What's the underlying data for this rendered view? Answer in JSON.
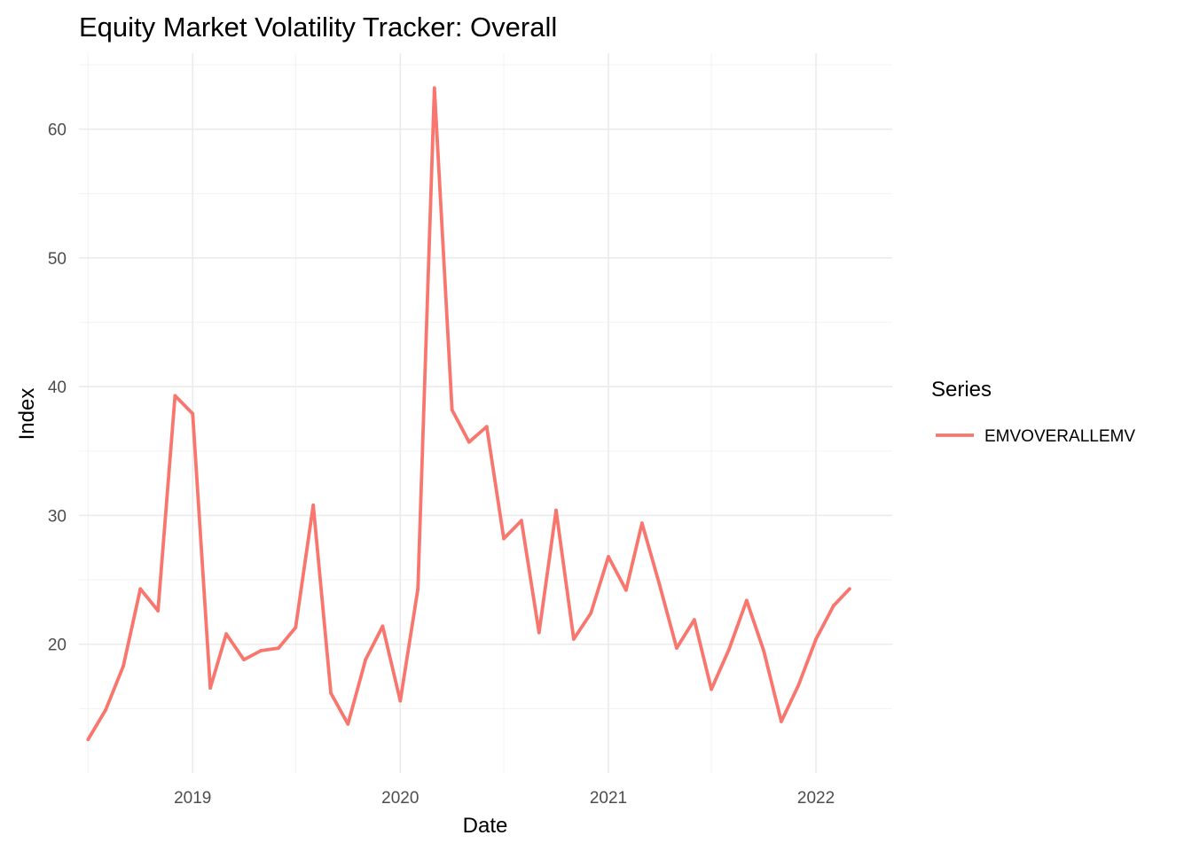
{
  "chart_data": {
    "type": "line",
    "title": "Equity Market Volatility Tracker: Overall",
    "xlabel": "Date",
    "ylabel": "Index",
    "x_ticks": [
      "2019",
      "2020",
      "2021",
      "2022"
    ],
    "y_ticks": [
      20,
      30,
      40,
      50,
      60
    ],
    "xlim": [
      "2018-06-15",
      "2022-05-15"
    ],
    "ylim": [
      10.0,
      65.9
    ],
    "grid": true,
    "legend": {
      "title": "Series",
      "position": "right"
    },
    "series": [
      {
        "name": "EMVOVERALLEMV",
        "color": "#F8766D",
        "x": [
          "2018-07-01",
          "2018-08-01",
          "2018-09-01",
          "2018-10-01",
          "2018-11-01",
          "2018-12-01",
          "2019-01-01",
          "2019-02-01",
          "2019-03-01",
          "2019-04-01",
          "2019-05-01",
          "2019-06-01",
          "2019-07-01",
          "2019-08-01",
          "2019-09-01",
          "2019-10-01",
          "2019-11-01",
          "2019-12-01",
          "2020-01-01",
          "2020-02-01",
          "2020-03-01",
          "2020-04-01",
          "2020-05-01",
          "2020-06-01",
          "2020-07-01",
          "2020-08-01",
          "2020-09-01",
          "2020-10-01",
          "2020-11-01",
          "2020-12-01",
          "2021-01-01",
          "2021-02-01",
          "2021-03-01",
          "2021-04-01",
          "2021-05-01",
          "2021-06-01",
          "2021-07-01",
          "2021-08-01",
          "2021-09-01",
          "2021-10-01",
          "2021-11-01",
          "2021-12-01",
          "2022-01-01",
          "2022-02-01",
          "2022-03-01"
        ],
        "y": [
          12.6,
          14.9,
          18.3,
          24.3,
          22.6,
          39.3,
          37.9,
          16.6,
          20.8,
          18.8,
          19.5,
          19.7,
          21.3,
          30.8,
          16.2,
          13.8,
          18.8,
          21.4,
          15.6,
          24.3,
          63.2,
          38.2,
          35.7,
          36.9,
          28.2,
          29.6,
          20.9,
          30.4,
          20.4,
          22.4,
          26.8,
          24.2,
          29.4,
          24.6,
          19.7,
          21.9,
          16.5,
          19.6,
          23.4,
          19.5,
          14.0,
          16.8,
          20.4,
          23.0,
          24.3
        ]
      }
    ]
  }
}
